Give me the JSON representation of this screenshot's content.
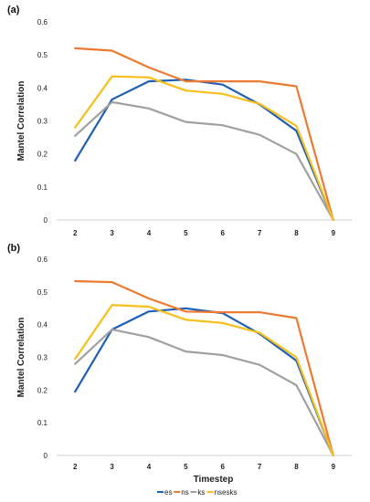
{
  "colors": {
    "es": "#1f5fb4",
    "ns": "#ed7a32",
    "ks": "#a0a0a0",
    "nsesks": "#f7bf1a"
  },
  "chart_data": [
    {
      "type": "line",
      "panel_label": "(a)",
      "ylabel": "Mantel Correlation",
      "xlabel": "",
      "x": [
        2,
        3,
        4,
        5,
        6,
        7,
        8,
        9
      ],
      "ylim": [
        0,
        0.6
      ],
      "yticks": [
        "0",
        "0.1",
        "0.2",
        "0.3",
        "0.4",
        "0.5",
        "0.6"
      ],
      "grid": false,
      "series": [
        {
          "name": "es",
          "values": [
            0.18,
            0.365,
            0.42,
            0.425,
            0.41,
            0.35,
            0.27,
            0.0
          ]
        },
        {
          "name": "ns",
          "values": [
            0.52,
            0.513,
            0.462,
            0.42,
            0.42,
            0.42,
            0.405,
            0.0
          ]
        },
        {
          "name": "ks",
          "values": [
            0.255,
            0.357,
            0.338,
            0.297,
            0.287,
            0.258,
            0.2,
            0.0
          ]
        },
        {
          "name": "nsesks",
          "values": [
            0.28,
            0.435,
            0.432,
            0.392,
            0.382,
            0.352,
            0.285,
            0.0
          ]
        }
      ]
    },
    {
      "type": "line",
      "panel_label": "(b)",
      "ylabel": "Mantel Correlation",
      "xlabel": "Timestep",
      "x": [
        2,
        3,
        4,
        5,
        6,
        7,
        8,
        9
      ],
      "ylim": [
        0,
        0.6
      ],
      "yticks": [
        "0",
        "0.1",
        "0.2",
        "0.3",
        "0.4",
        "0.5",
        "0.6"
      ],
      "grid": false,
      "series": [
        {
          "name": "es",
          "values": [
            0.195,
            0.385,
            0.44,
            0.45,
            0.435,
            0.372,
            0.29,
            0.0
          ]
        },
        {
          "name": "ns",
          "values": [
            0.533,
            0.53,
            0.48,
            0.44,
            0.438,
            0.438,
            0.42,
            0.0
          ]
        },
        {
          "name": "ks",
          "values": [
            0.28,
            0.385,
            0.362,
            0.318,
            0.307,
            0.277,
            0.215,
            0.0
          ]
        },
        {
          "name": "nsesks",
          "values": [
            0.295,
            0.46,
            0.455,
            0.415,
            0.405,
            0.375,
            0.3,
            0.0
          ]
        }
      ]
    }
  ],
  "legend": {
    "placement": "bottom-center",
    "items": [
      "es",
      "ns",
      "ks",
      "nsesks"
    ]
  }
}
